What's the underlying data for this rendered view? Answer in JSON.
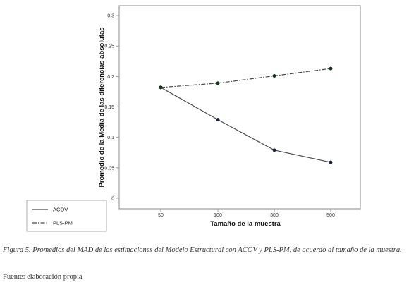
{
  "chart_data": {
    "type": "line",
    "categories": [
      "50",
      "100",
      "300",
      "500"
    ],
    "series": [
      {
        "name": "ACOV",
        "values": [
          0.182,
          0.129,
          0.079,
          0.059
        ],
        "style": "solid",
        "color": "#4a4a4a",
        "marker_color": "#1a1f4a"
      },
      {
        "name": "PLS-PM",
        "values": [
          0.182,
          0.189,
          0.201,
          0.213
        ],
        "style": "dashdot",
        "color": "#4a4a4a",
        "marker_color": "#0f3a1a"
      }
    ],
    "title": "",
    "xlabel": "Tamaño de la muestra",
    "ylabel": "Promedio de la Media de las diferencias absolutas",
    "ylim": [
      0,
      0.3
    ],
    "yticks": [
      "0",
      "0.05",
      "0.1",
      "0.15",
      "0.2",
      "0.25",
      "0.3"
    ],
    "grid": false,
    "legend_placement": "bottom-left-outside"
  },
  "caption": "Figura 5. Promedios del MAD de las estimaciones del Modelo Estructural con ACOV y PLS-PM, de acuerdo al tamaño de la muestra.",
  "source": "Fuente: elaboración propia"
}
